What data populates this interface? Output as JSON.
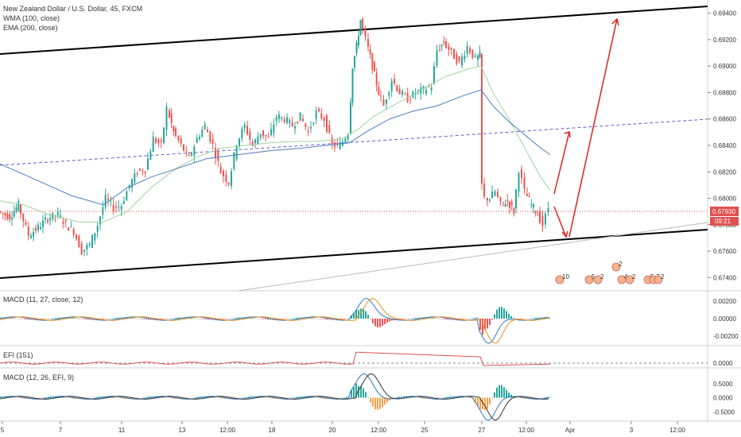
{
  "chart_data": [
    {
      "type": "candlestick",
      "title": "New Zealand Dollar / U.S. Dollar, 45, FXCM",
      "studies": [
        "WMA (100, close)",
        "EMA (200, close)"
      ],
      "ylim": [
        0.673,
        0.695
      ],
      "y_ticks": [
        "0.69400",
        "0.69200",
        "0.69000",
        "0.68800",
        "0.68600",
        "0.68400",
        "0.68200",
        "0.68000",
        "0.67800",
        "0.67600",
        "0.67400"
      ],
      "last_price": "0.67930",
      "countdown": "09:21",
      "series": [
        {
          "name": "close",
          "points": [
            [
              0,
              0.679
            ],
            [
              14,
              0.6786
            ],
            [
              25,
              0.6795
            ],
            [
              38,
              0.6772
            ],
            [
              50,
              0.6778
            ],
            [
              62,
              0.6785
            ],
            [
              75,
              0.6788
            ],
            [
              85,
              0.678
            ],
            [
              95,
              0.6775
            ],
            [
              105,
              0.676
            ],
            [
              115,
              0.6765
            ],
            [
              125,
              0.678
            ],
            [
              135,
              0.68
            ],
            [
              145,
              0.6793
            ],
            [
              155,
              0.6795
            ],
            [
              165,
              0.681
            ],
            [
              175,
              0.682
            ],
            [
              185,
              0.6822
            ],
            [
              195,
              0.6845
            ],
            [
              205,
              0.684
            ],
            [
              212,
              0.6868
            ],
            [
              220,
              0.685
            ],
            [
              230,
              0.684
            ],
            [
              240,
              0.683
            ],
            [
              250,
              0.6845
            ],
            [
              260,
              0.6855
            ],
            [
              270,
              0.684
            ],
            [
              280,
              0.682
            ],
            [
              290,
              0.6812
            ],
            [
              300,
              0.6842
            ],
            [
              310,
              0.6855
            ],
            [
              320,
              0.684
            ],
            [
              330,
              0.685
            ],
            [
              340,
              0.6845
            ],
            [
              350,
              0.6862
            ],
            [
              360,
              0.686
            ],
            [
              370,
              0.6855
            ],
            [
              380,
              0.6862
            ],
            [
              390,
              0.685
            ],
            [
              400,
              0.6865
            ],
            [
              410,
              0.686
            ],
            [
              420,
              0.684
            ],
            [
              430,
              0.684
            ],
            [
              440,
              0.685
            ],
            [
              445,
              0.69
            ],
            [
              450,
              0.6915
            ],
            [
              455,
              0.6935
            ],
            [
              462,
              0.692
            ],
            [
              470,
              0.69
            ],
            [
              478,
              0.688
            ],
            [
              485,
              0.687
            ],
            [
              495,
              0.689
            ],
            [
              505,
              0.688
            ],
            [
              515,
              0.6875
            ],
            [
              525,
              0.688
            ],
            [
              535,
              0.6882
            ],
            [
              545,
              0.6885
            ],
            [
              552,
              0.6912
            ],
            [
              560,
              0.6918
            ],
            [
              570,
              0.691
            ],
            [
              580,
              0.6902
            ],
            [
              590,
              0.6915
            ],
            [
              600,
              0.6905
            ],
            [
              605,
              0.6908
            ],
            [
              608,
              0.681
            ],
            [
              612,
              0.68
            ],
            [
              618,
              0.68
            ],
            [
              625,
              0.6805
            ],
            [
              632,
              0.6795
            ],
            [
              640,
              0.6798
            ],
            [
              648,
              0.679
            ],
            [
              655,
              0.6822
            ],
            [
              662,
              0.6805
            ],
            [
              670,
              0.6795
            ],
            [
              678,
              0.6788
            ],
            [
              685,
              0.678
            ],
            [
              692,
              0.6793
            ]
          ]
        },
        {
          "name": "WMA (100, close)",
          "points": [
            [
              0,
              0.6798
            ],
            [
              30,
              0.6795
            ],
            [
              60,
              0.6788
            ],
            [
              100,
              0.6782
            ],
            [
              130,
              0.6782
            ],
            [
              160,
              0.679
            ],
            [
              190,
              0.6808
            ],
            [
              220,
              0.6822
            ],
            [
              250,
              0.6832
            ],
            [
              280,
              0.6838
            ],
            [
              310,
              0.684
            ],
            [
              340,
              0.6842
            ],
            [
              370,
              0.6843
            ],
            [
              400,
              0.6843
            ],
            [
              430,
              0.6845
            ],
            [
              450,
              0.6852
            ],
            [
              470,
              0.6862
            ],
            [
              500,
              0.6872
            ],
            [
              530,
              0.6882
            ],
            [
              560,
              0.6892
            ],
            [
              590,
              0.6898
            ],
            [
              605,
              0.69
            ],
            [
              620,
              0.688
            ],
            [
              640,
              0.686
            ],
            [
              660,
              0.6838
            ],
            [
              680,
              0.6816
            ],
            [
              692,
              0.6806
            ]
          ]
        },
        {
          "name": "EMA (200, close)",
          "points": [
            [
              0,
              0.6826
            ],
            [
              30,
              0.6818
            ],
            [
              60,
              0.681
            ],
            [
              90,
              0.6802
            ],
            [
              130,
              0.6795
            ],
            [
              160,
              0.6808
            ],
            [
              190,
              0.6816
            ],
            [
              220,
              0.6822
            ],
            [
              260,
              0.683
            ],
            [
              300,
              0.6833
            ],
            [
              340,
              0.6836
            ],
            [
              380,
              0.6838
            ],
            [
              410,
              0.684
            ],
            [
              440,
              0.6842
            ],
            [
              460,
              0.685
            ],
            [
              490,
              0.686
            ],
            [
              520,
              0.6866
            ],
            [
              550,
              0.687
            ],
            [
              580,
              0.6877
            ],
            [
              605,
              0.6882
            ],
            [
              620,
              0.687
            ],
            [
              640,
              0.6858
            ],
            [
              660,
              0.6848
            ],
            [
              680,
              0.6838
            ],
            [
              692,
              0.6833
            ]
          ]
        }
      ],
      "x_ticks": [
        "5",
        "7",
        "11",
        "13",
        "12:00",
        "18",
        "20",
        "12:00",
        "25",
        "27",
        "12:00",
        "Apr",
        "3",
        "12:00"
      ],
      "event_flags": [
        "10",
        "5",
        "2",
        "2",
        "4",
        "2",
        "5",
        "7",
        "2"
      ]
    },
    {
      "type": "macd",
      "title": "MACD (11, 27, close, 12)",
      "ylim": [
        -0.003,
        0.003
      ],
      "y_ticks": [
        "0.00200",
        "0.00000",
        "-0.00200"
      ]
    },
    {
      "type": "line",
      "title": "EFI (151)",
      "ylim": [
        -0.0002,
        0.0008
      ],
      "y_ticks": [
        "0.0000"
      ]
    },
    {
      "type": "macd",
      "title": "MACD (12, 26, EFI, 9)",
      "ylim": [
        -0.8,
        1.0
      ],
      "y_ticks": [
        "0.5000",
        "0.0000",
        "-0.5000"
      ]
    }
  ]
}
